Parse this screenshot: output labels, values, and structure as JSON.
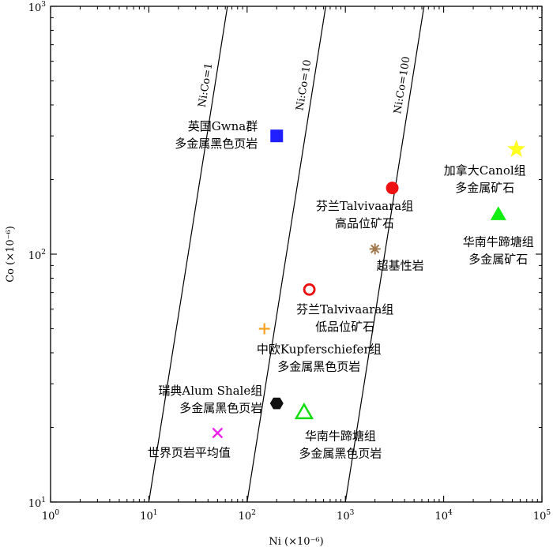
{
  "chart_data": {
    "type": "scatter",
    "title": "",
    "xlabel": "Ni (×10⁻⁶)",
    "ylabel": "Co (×10⁻⁶)",
    "xscale": "log",
    "yscale": "log",
    "xlim": [
      1,
      100000
    ],
    "ylim": [
      10,
      1000
    ],
    "grid": false,
    "legend": "none",
    "x_ticks": [
      {
        "value": 1,
        "base": "10",
        "exp": "0"
      },
      {
        "value": 10,
        "base": "10",
        "exp": "1"
      },
      {
        "value": 100,
        "base": "10",
        "exp": "2"
      },
      {
        "value": 1000,
        "base": "10",
        "exp": "3"
      },
      {
        "value": 10000,
        "base": "10",
        "exp": "4"
      },
      {
        "value": 100000,
        "base": "10",
        "exp": "5"
      }
    ],
    "y_ticks": [
      {
        "value": 10,
        "base": "10",
        "exp": "1"
      },
      {
        "value": 100,
        "base": "10",
        "exp": "2"
      },
      {
        "value": 1000,
        "base": "10",
        "exp": "3"
      }
    ],
    "ratio_lines": [
      {
        "label": "Ni:Co=1",
        "ratio": 1
      },
      {
        "label": "Ni:Co=10",
        "ratio": 10
      },
      {
        "label": "Ni:Co=100",
        "ratio": 100
      }
    ],
    "points": [
      {
        "id": "uk-gwna",
        "x": 200,
        "y": 300,
        "marker": "square",
        "color": "#1f1fff",
        "filled": true,
        "label": [
          "英国Gwna群",
          "多金属黑色页岩"
        ]
      },
      {
        "id": "canada-canol",
        "x": 55000,
        "y": 265,
        "marker": "star",
        "color": "#ffff22",
        "filled": true,
        "label": [
          "加拿大Canol组",
          "多金属矿石"
        ]
      },
      {
        "id": "finland-high",
        "x": 3000,
        "y": 185,
        "marker": "circle",
        "color": "#ee1111",
        "filled": true,
        "label": [
          "芬兰Talvivaara组",
          "高品位矿石"
        ]
      },
      {
        "id": "south-china-ore",
        "x": 36000,
        "y": 145,
        "marker": "triangle",
        "color": "#11ee11",
        "filled": true,
        "label": [
          "华南牛蹄塘组",
          "多金属矿石"
        ]
      },
      {
        "id": "ultrabasic",
        "x": 2000,
        "y": 105,
        "marker": "asterisk",
        "color": "#a0784a",
        "filled": true,
        "label": [
          "超基性岩"
        ]
      },
      {
        "id": "finland-low",
        "x": 430,
        "y": 72,
        "marker": "circle",
        "color": "#ee1111",
        "filled": false,
        "label": [
          "芬兰Talvivaara组",
          "低品位矿石"
        ]
      },
      {
        "id": "central-europe",
        "x": 150,
        "y": 50,
        "marker": "plus",
        "color": "#f5a020",
        "filled": true,
        "label": [
          "中欧Kupferschiefer组",
          "多金属黑色页岩"
        ]
      },
      {
        "id": "sweden-alum",
        "x": 200,
        "y": 25,
        "marker": "hexagon",
        "color": "#111111",
        "filled": true,
        "label": [
          "瑞典Alum Shale组",
          "多金属黑色页岩"
        ]
      },
      {
        "id": "south-china-shale",
        "x": 380,
        "y": 23,
        "marker": "triangle",
        "color": "#11dd11",
        "filled": false,
        "label": [
          "华南牛蹄塘组",
          "多金属黑色页岩"
        ]
      },
      {
        "id": "world-average",
        "x": 50,
        "y": 19,
        "marker": "cross",
        "color": "#ee22ee",
        "filled": true,
        "label": [
          "世界页岩平均值"
        ]
      }
    ]
  }
}
